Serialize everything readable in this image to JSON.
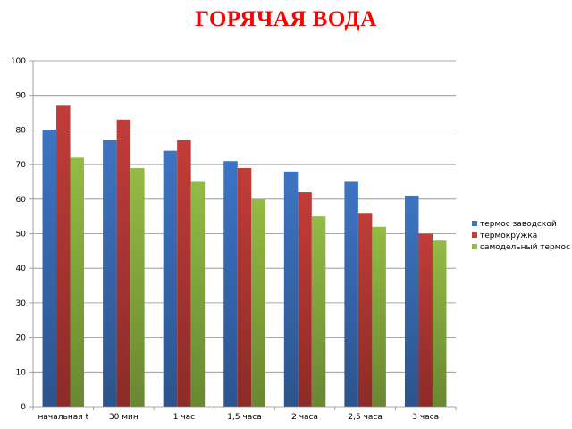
{
  "chart_data": {
    "type": "bar",
    "title": "ГОРЯЧАЯ ВОДА",
    "title_color": "#ff0000",
    "categories": [
      "начальная t",
      "30 мин",
      "1 час",
      "1,5 часа",
      "2 часа",
      "2,5 часа",
      "3 часа"
    ],
    "series": [
      {
        "name": "термос заводской",
        "color": "#3d74c2",
        "values": [
          80,
          77,
          74,
          71,
          68,
          65,
          61
        ]
      },
      {
        "name": "термокружка",
        "color": "#c23c38",
        "values": [
          87,
          83,
          77,
          69,
          62,
          56,
          50
        ]
      },
      {
        "name": "самодельный термос",
        "color": "#93bb45",
        "values": [
          72,
          69,
          65,
          60,
          55,
          52,
          48
        ]
      }
    ],
    "ylim": [
      0,
      100
    ],
    "yticks": [
      0,
      10,
      20,
      30,
      40,
      50,
      60,
      70,
      80,
      90,
      100
    ],
    "grid": true,
    "legend": "right",
    "xlabel": "",
    "ylabel": ""
  }
}
